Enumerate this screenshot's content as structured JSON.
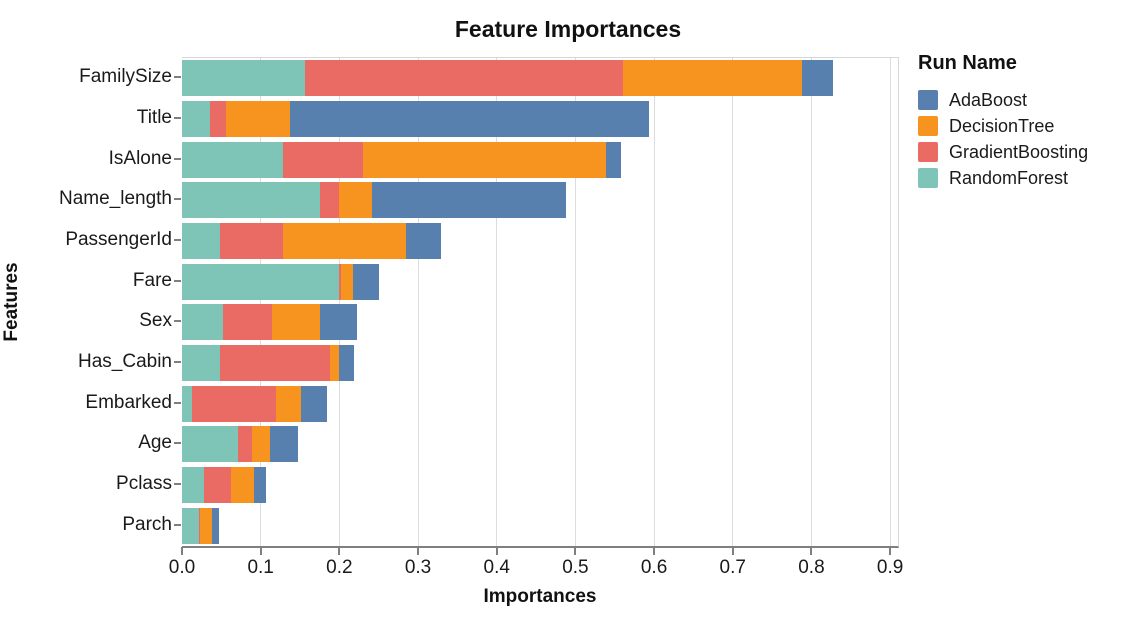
{
  "chart_data": {
    "type": "bar",
    "orientation": "horizontal",
    "stacked": true,
    "title": "Feature Importances",
    "xlabel": "Importances",
    "ylabel": "Features",
    "legend_title": "Run Name",
    "legend_position": "right",
    "grid": true,
    "xlim": [
      0,
      0.91
    ],
    "xticks": [
      0.0,
      0.1,
      0.2,
      0.3,
      0.4,
      0.5,
      0.6,
      0.7,
      0.8,
      0.9
    ],
    "xtick_labels": [
      "0.0",
      "0.1",
      "0.2",
      "0.3",
      "0.4",
      "0.5",
      "0.6",
      "0.7",
      "0.8",
      "0.9"
    ],
    "categories": [
      "FamilySize",
      "Title",
      "IsAlone",
      "Name_length",
      "PassengerId",
      "Fare",
      "Sex",
      "Has_Cabin",
      "Embarked",
      "Age",
      "Pclass",
      "Parch"
    ],
    "stack_order": [
      "RandomForest",
      "GradientBoosting",
      "DecisionTree",
      "AdaBoost"
    ],
    "series": [
      {
        "name": "AdaBoost",
        "color": "#5880AF",
        "values": [
          0.04,
          0.457,
          0.019,
          0.246,
          0.044,
          0.034,
          0.048,
          0.019,
          0.033,
          0.036,
          0.016,
          0.009
        ]
      },
      {
        "name": "DecisionTree",
        "color": "#F7941F",
        "values": [
          0.228,
          0.081,
          0.309,
          0.042,
          0.156,
          0.015,
          0.061,
          0.012,
          0.032,
          0.023,
          0.029,
          0.015
        ]
      },
      {
        "name": "GradientBoosting",
        "color": "#EA6A64",
        "values": [
          0.404,
          0.02,
          0.102,
          0.025,
          0.081,
          0.002,
          0.062,
          0.14,
          0.106,
          0.018,
          0.034,
          0.002
        ]
      },
      {
        "name": "RandomForest",
        "color": "#7EC4B7",
        "values": [
          0.156,
          0.036,
          0.128,
          0.175,
          0.048,
          0.2,
          0.052,
          0.048,
          0.013,
          0.071,
          0.028,
          0.021
        ]
      }
    ],
    "colors": {
      "gridline": "#dcdcdc",
      "axis_line": "#7f7f7f",
      "panel_border": "#d8d8d8",
      "text": "#1a1a1a"
    }
  }
}
